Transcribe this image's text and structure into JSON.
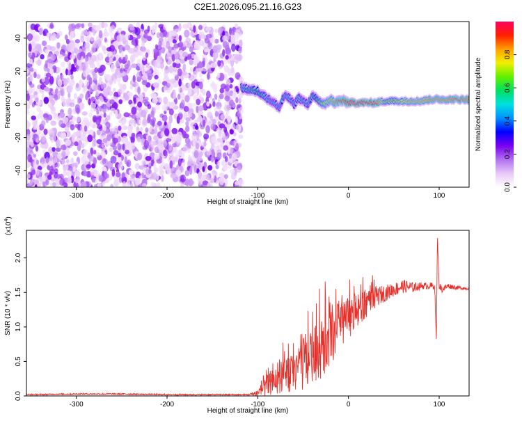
{
  "title": "C2E1.2026.095.21.16.G23",
  "chart_data": [
    {
      "type": "heatmap",
      "title": "C2E1.2026.095.21.16.G23",
      "xlabel": "Height of straight line (km)",
      "ylabel": "Frequency (Hz)",
      "xlim": [
        -355,
        133
      ],
      "ylim": [
        -50,
        50
      ],
      "xticks": [
        -300,
        -200,
        -100,
        0,
        100
      ],
      "yticks": [
        -40,
        -20,
        0,
        20,
        40
      ],
      "colorbar": {
        "label": "Normalized spectral amplitude",
        "range": [
          0,
          1
        ],
        "ticks": [
          0.0,
          0.2,
          0.4,
          0.6,
          0.8
        ],
        "tick_labels": [
          "0.0",
          "0.2",
          "0.4",
          "0.6",
          "0.8"
        ],
        "colors": [
          "#ffffff",
          "#e8c8f8",
          "#b070f0",
          "#7a00f0",
          "#0000ff",
          "#0090ff",
          "#00e0e0",
          "#00e060",
          "#60f000",
          "#f0f000",
          "#ffa000",
          "#ff2000",
          "#ff0060"
        ]
      },
      "noise_region": {
        "x_range": [
          -355,
          -118
        ],
        "freq_range": [
          -50,
          48
        ],
        "level": [
          0.0,
          0.22
        ]
      },
      "signal_track": {
        "x": [
          -118,
          -110,
          -100,
          -95,
          -90,
          -85,
          -80,
          -76,
          -72,
          -68,
          -64,
          -60,
          -55,
          -50,
          -45,
          -40,
          -35,
          -30,
          -25,
          -20,
          -15,
          -10,
          -5,
          0,
          10,
          20,
          30,
          40,
          50,
          60,
          70,
          80,
          90,
          100,
          110,
          120,
          133
        ],
        "freq": [
          10,
          9,
          8,
          6,
          4,
          2,
          0,
          -2,
          4,
          5,
          3,
          0,
          4,
          2,
          0,
          5,
          3,
          1,
          0,
          3,
          1,
          2,
          2,
          1,
          1,
          1,
          1,
          2,
          2,
          2,
          2,
          2,
          3,
          3,
          3,
          3,
          3
        ],
        "amplitude": [
          0.5,
          0.55,
          0.6,
          0.55,
          0.5,
          0.45,
          0.5,
          0.45,
          0.55,
          0.5,
          0.5,
          0.45,
          0.5,
          0.5,
          0.5,
          0.55,
          0.6,
          0.7,
          0.75,
          0.8,
          0.85,
          0.9,
          0.95,
          1.0,
          1.0,
          1.0,
          0.95,
          0.7,
          0.7,
          0.75,
          0.8,
          0.8,
          0.85,
          0.85,
          0.85,
          0.9,
          0.85
        ]
      }
    },
    {
      "type": "line",
      "xlabel": "Height of straight line (km)",
      "ylabel": "SNR (10 * v/v)",
      "yscale_label": "(x10^4)",
      "yscale_base": "(x10",
      "yscale_exp": "4",
      "xlim": [
        -355,
        133
      ],
      "ylim": [
        0,
        2.4
      ],
      "xticks": [
        -300,
        -200,
        -100,
        0,
        100
      ],
      "yticks": [
        0.0,
        0.5,
        1.0,
        1.5,
        2.0
      ],
      "ytick_labels": [
        "0.0",
        "0.5",
        "1.0",
        "1.5",
        "2.0"
      ],
      "series": [
        {
          "name": "SNR",
          "color": "#e8302a",
          "x": [
            -355,
            -300,
            -250,
            -200,
            -150,
            -110,
            -100,
            -90,
            -80,
            -70,
            -60,
            -50,
            -40,
            -30,
            -20,
            -10,
            0,
            10,
            20,
            30,
            40,
            50,
            60,
            70,
            80,
            90,
            95,
            97,
            98,
            100,
            103,
            110,
            120,
            133
          ],
          "y": [
            0.02,
            0.03,
            0.03,
            0.02,
            0.02,
            0.02,
            0.05,
            0.15,
            0.25,
            0.3,
            0.35,
            0.45,
            0.6,
            0.75,
            0.9,
            1.05,
            1.15,
            1.25,
            1.35,
            1.45,
            1.5,
            1.55,
            1.6,
            1.58,
            1.6,
            1.6,
            1.6,
            0.75,
            2.35,
            1.6,
            1.55,
            1.6,
            1.57,
            1.56
          ],
          "noise_amplitude": [
            0.01,
            0.01,
            0.01,
            0.01,
            0.01,
            0.01,
            0.06,
            0.15,
            0.2,
            0.25,
            0.3,
            0.35,
            0.4,
            0.45,
            0.45,
            0.4,
            0.3,
            0.25,
            0.2,
            0.15,
            0.12,
            0.1,
            0.1,
            0.08,
            0.05,
            0.05,
            0.05,
            0.05,
            0.05,
            0.05,
            0.05,
            0.04,
            0.03,
            0.02
          ]
        }
      ]
    }
  ]
}
